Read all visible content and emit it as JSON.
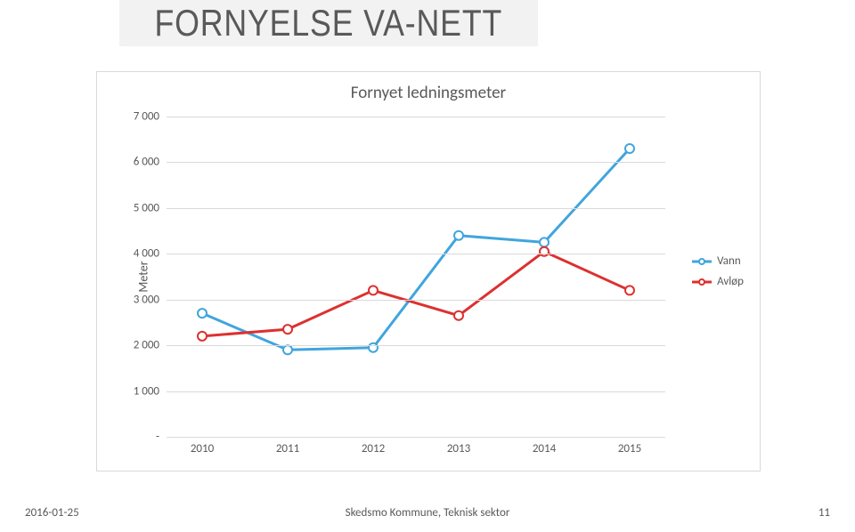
{
  "slide": {
    "title": "FORNYELSE VA-NETT"
  },
  "chart": {
    "type": "line",
    "title": "Fornyet ledningsmeter",
    "ylabel": "Meter",
    "categories": [
      "2010",
      "2011",
      "2012",
      "2013",
      "2014",
      "2015"
    ],
    "ylim": [
      0,
      7000
    ],
    "ytick_step": 1000,
    "ytick_labels": [
      "-",
      "1 000",
      "2 000",
      "3 000",
      "4 000",
      "5 000",
      "6 000",
      "7 000"
    ],
    "background_color": "#ffffff",
    "grid_color": "#d9d9d9",
    "label_fontsize": 13,
    "title_fontsize": 19,
    "line_width": 3,
    "marker_radius": 5,
    "marker_fill": "#ffffff",
    "series": [
      {
        "name": "Vann",
        "color": "#41a5dc",
        "values": [
          2700,
          1900,
          1950,
          4400,
          4250,
          6300
        ]
      },
      {
        "name": "Avløp",
        "color": "#dd3030",
        "values": [
          2200,
          2350,
          3200,
          2650,
          4050,
          3200
        ]
      }
    ]
  },
  "footer": {
    "date": "2016-01-25",
    "org": "Skedsmo Kommune, Teknisk sektor",
    "page": "11"
  }
}
